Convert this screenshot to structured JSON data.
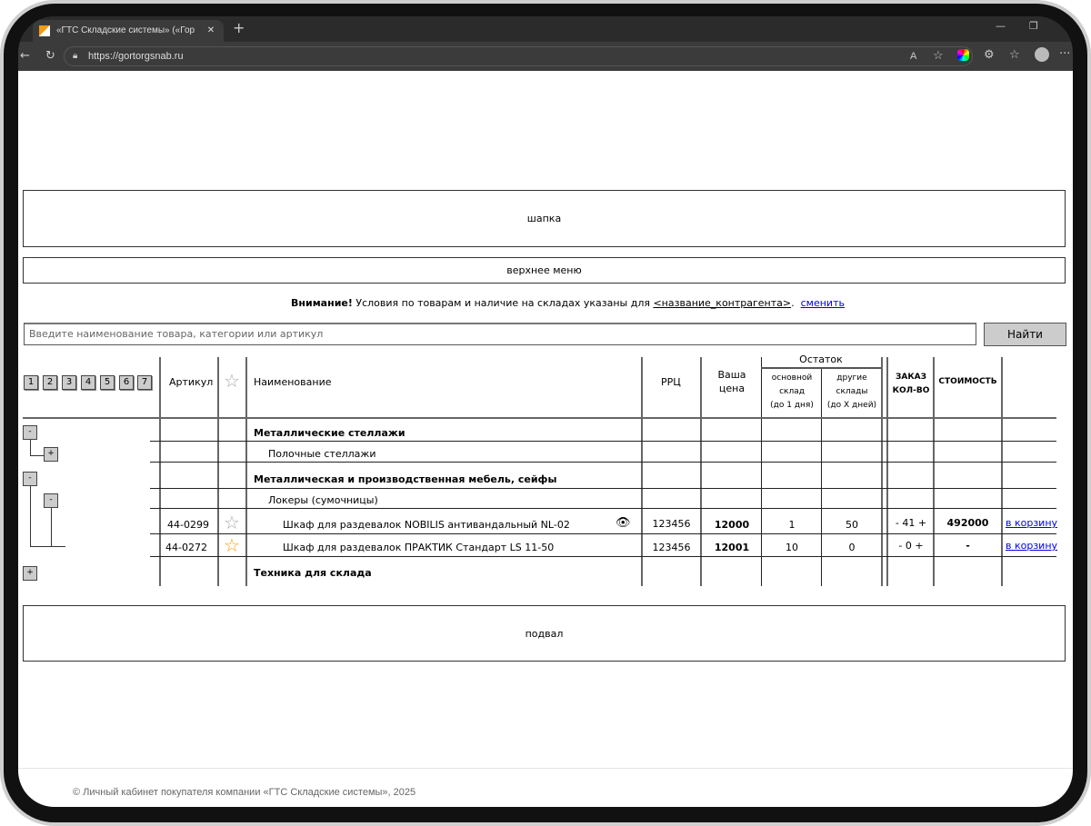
{
  "browser": {
    "tab_title": "«ГТС Складские системы» («Гор",
    "url": "https://gortorgsnab.ru"
  },
  "placeholders": {
    "header": "шапка",
    "top_menu": "верхнее меню",
    "footer_block": "подвал"
  },
  "notice": {
    "bold": "Внимание!",
    "text": " Условия по товарам и наличие на складах указаны для ",
    "counterparty": "<название_контрагента>",
    "dot": ".",
    "change_link": "сменить"
  },
  "search": {
    "placeholder": "Введите наименование товара, категории или артикул",
    "button": "Найти"
  },
  "pagination": [
    "1",
    "2",
    "3",
    "4",
    "5",
    "6",
    "7"
  ],
  "table": {
    "headers": {
      "article": "Артикул",
      "name": "Наименование",
      "rrp": "РРЦ",
      "your_price_1": "Ваша",
      "your_price_2": "цена",
      "stock": "Остаток",
      "main_1": "основной",
      "main_2": "склад",
      "main_3": "(до 1 дня)",
      "other_1": "другие",
      "other_2": "склады",
      "other_3": "(до X дней)",
      "order_1": "ЗАКАЗ",
      "order_2": "КОЛ-ВО",
      "cost": "СТОИМОСТЬ"
    },
    "categories": [
      "Металлические стеллажи",
      "Полочные стеллажи",
      "Металлическая и производственная мебель, сейфы",
      "Локеры (сумочницы)",
      "Техника для склада"
    ],
    "tree_buttons": [
      "-",
      "+",
      "-",
      "-",
      "+"
    ],
    "products": [
      {
        "article": "44-0299",
        "favorite": false,
        "name": "Шкаф для раздевалок NOBILIS антивандальный NL-02",
        "rrp": "123456",
        "price": "12000",
        "main_stock": "1",
        "other_stock": "50",
        "qty": "- 41 +",
        "cost": "492000",
        "cart": "в корзину"
      },
      {
        "article": "44-0272",
        "favorite": true,
        "name": "Шкаф для раздевалок ПРАКТИК Стандарт LS 11-50",
        "rrp": "123456",
        "price": "12001",
        "main_stock": "10",
        "other_stock": "0",
        "qty": "- 0 +",
        "cost": "-",
        "cart": "в корзину"
      }
    ]
  },
  "footer": "© Личный кабинет покупателя компании «ГТС Складские системы», 2025",
  "colors": {
    "favorite_active": "#f39c12",
    "favorite_inactive": "#aaaaaa",
    "link": "#0000ee"
  }
}
